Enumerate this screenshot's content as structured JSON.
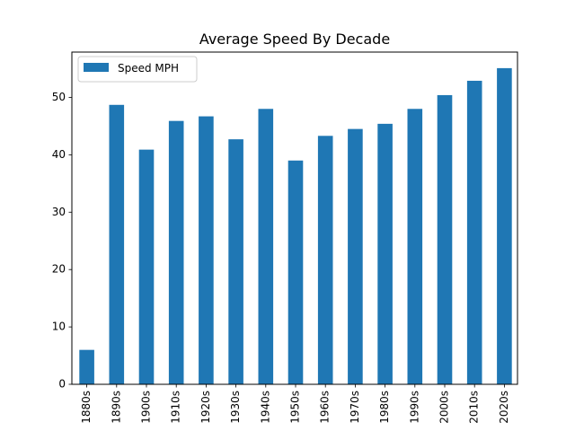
{
  "chart_data": {
    "type": "bar",
    "title": "Average Speed By Decade",
    "xlabel": "",
    "ylabel": "",
    "categories": [
      "1880s",
      "1890s",
      "1900s",
      "1910s",
      "1920s",
      "1930s",
      "1940s",
      "1950s",
      "1960s",
      "1970s",
      "1980s",
      "1990s",
      "2000s",
      "2010s",
      "2020s"
    ],
    "series": [
      {
        "name": "Speed MPH",
        "color": "#1f77b4",
        "values": [
          6.0,
          48.7,
          40.9,
          45.9,
          46.7,
          42.7,
          48.0,
          39.0,
          43.3,
          44.5,
          45.4,
          48.0,
          50.4,
          52.9,
          55.1
        ]
      }
    ],
    "ylim": [
      0,
      57.9
    ],
    "yticks": [
      0,
      10,
      20,
      30,
      40,
      50
    ],
    "legend": {
      "placement": "upper-left"
    },
    "grid": false
  }
}
